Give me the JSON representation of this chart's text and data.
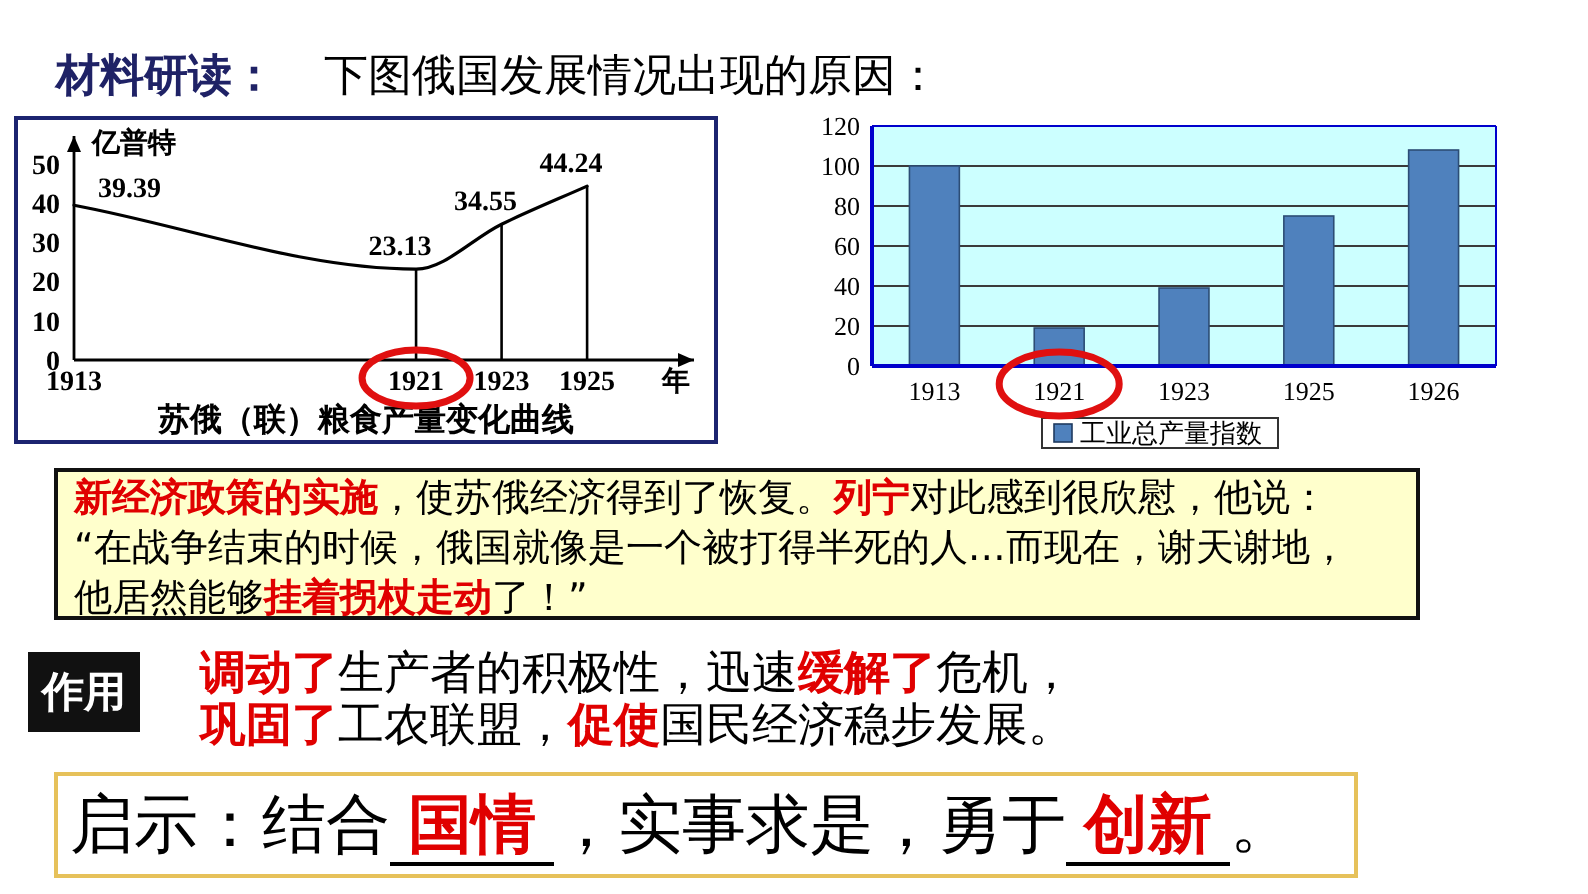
{
  "chart_data": [
    {
      "type": "other",
      "title": "材料研读：",
      "subtitle": "下图俄国发展情况出现的原因："
    },
    {
      "type": "line",
      "title": "苏俄（联）粮食产量变化曲线",
      "xlabel": "年",
      "ylabel": "亿普特",
      "x": [
        1913,
        1921,
        1923,
        1925
      ],
      "values": [
        39.39,
        23.13,
        34.55,
        44.24
      ],
      "color": "#000000",
      "xlim": [
        1913,
        1927.5
      ],
      "xticks": [
        1913,
        1921,
        1923,
        1925
      ],
      "ylim": [
        0,
        57
      ],
      "yticks": [
        0,
        10,
        20,
        30,
        40,
        50
      ],
      "data_labels": true,
      "ref_lines": [
        {
          "axis": "x",
          "value": 1921
        },
        {
          "axis": "x",
          "value": 1923
        },
        {
          "axis": "x",
          "value": 1925
        }
      ]
    },
    {
      "type": "bar",
      "categories": [
        "1913",
        "1921",
        "1923",
        "1925",
        "1926"
      ],
      "series": [
        {
          "name": "工业总产量指数",
          "color": "#4f81bd",
          "values": [
            100,
            19,
            39,
            75,
            108
          ]
        }
      ],
      "ylim": [
        0,
        120
      ],
      "yticks": [
        0,
        20,
        40,
        60,
        80,
        100,
        120
      ],
      "grid": "y",
      "legend": "bottom"
    },
    {
      "type": "other",
      "annotations": [
        "**新经济政策的实施**，使苏俄经济得到了恢复。**列宁**对此感到很欣慰，他说：\n“在战争结束的时候，俄国就像是一个被打得半死的人…而现在，谢天谢地，他居然能够**挂着拐杖走动**了！”",
        "作用",
        "**调动了**生产者的积极性，迅速**缓解了**危机，**巩固了**工农联盟，**促使**国民经济稳步发展。",
        "启示：结合**国情**，实事求是，勇于**创新**。"
      ]
    }
  ]
}
